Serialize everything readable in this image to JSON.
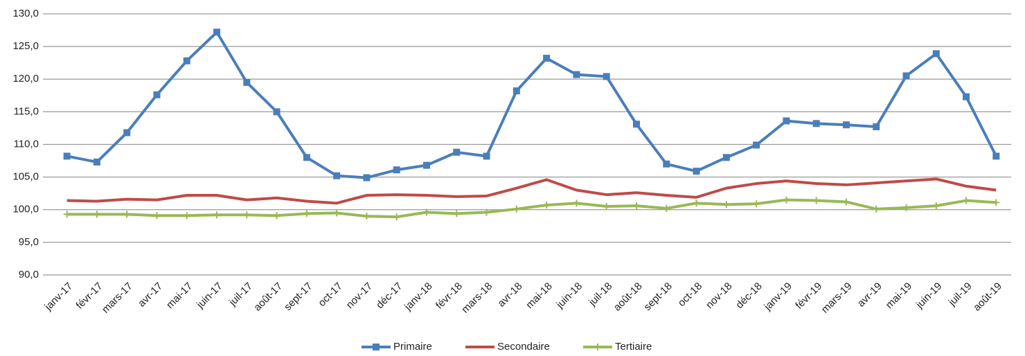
{
  "chart_data": {
    "type": "line",
    "categories": [
      "janv-17",
      "févr-17",
      "mars-17",
      "avr-17",
      "mai-17",
      "juin-17",
      "juil-17",
      "août-17",
      "sept-17",
      "oct-17",
      "nov-17",
      "déc-17",
      "janv-18",
      "févr-18",
      "mars-18",
      "avr-18",
      "mai-18",
      "juin-18",
      "juil-18",
      "août-18",
      "sept-18",
      "oct-18",
      "nov-18",
      "déc-18",
      "janv-19",
      "févr-19",
      "mars-19",
      "avr-19",
      "mai-19",
      "juin-19",
      "juil-19",
      "août-19"
    ],
    "series": [
      {
        "name": "Primaire",
        "color": "#4a7ebb",
        "marker": "square",
        "values": [
          108.2,
          107.3,
          111.8,
          117.6,
          122.8,
          127.2,
          119.5,
          115.0,
          108.0,
          105.2,
          104.9,
          106.1,
          106.8,
          108.8,
          108.2,
          118.2,
          123.2,
          120.7,
          120.4,
          113.1,
          107.0,
          105.9,
          108.0,
          109.9,
          113.6,
          113.2,
          113.0,
          112.7,
          120.5,
          123.9,
          117.3,
          108.2
        ]
      },
      {
        "name": "Secondaire",
        "color": "#be4b48",
        "marker": "none",
        "values": [
          101.4,
          101.3,
          101.6,
          101.5,
          102.2,
          102.2,
          101.5,
          101.8,
          101.3,
          101.0,
          102.2,
          102.3,
          102.2,
          102.0,
          102.1,
          103.3,
          104.6,
          103.0,
          102.3,
          102.6,
          102.2,
          101.9,
          103.3,
          104.0,
          104.4,
          104.0,
          103.8,
          104.1,
          104.4,
          104.7,
          103.6,
          103.0
        ]
      },
      {
        "name": "Tertiaire",
        "color": "#98b954",
        "marker": "plus",
        "values": [
          99.3,
          99.3,
          99.3,
          99.1,
          99.1,
          99.2,
          99.2,
          99.1,
          99.4,
          99.5,
          99.0,
          98.9,
          99.6,
          99.4,
          99.6,
          100.1,
          100.7,
          101.0,
          100.5,
          100.6,
          100.2,
          101.0,
          100.8,
          100.9,
          101.5,
          101.4,
          101.2,
          100.1,
          100.3,
          100.6,
          101.4,
          101.1
        ]
      }
    ],
    "ylim": [
      90,
      130
    ],
    "yticks": [
      {
        "value": 90,
        "label": "90,0"
      },
      {
        "value": 95,
        "label": "95,0"
      },
      {
        "value": 100,
        "label": "100,0"
      },
      {
        "value": 105,
        "label": "105,0"
      },
      {
        "value": 110,
        "label": "110,0"
      },
      {
        "value": 115,
        "label": "115,0"
      },
      {
        "value": 120,
        "label": "120,0"
      },
      {
        "value": 125,
        "label": "125,0"
      },
      {
        "value": 130,
        "label": "130,0"
      }
    ],
    "grid": true,
    "legend": "bottom"
  }
}
